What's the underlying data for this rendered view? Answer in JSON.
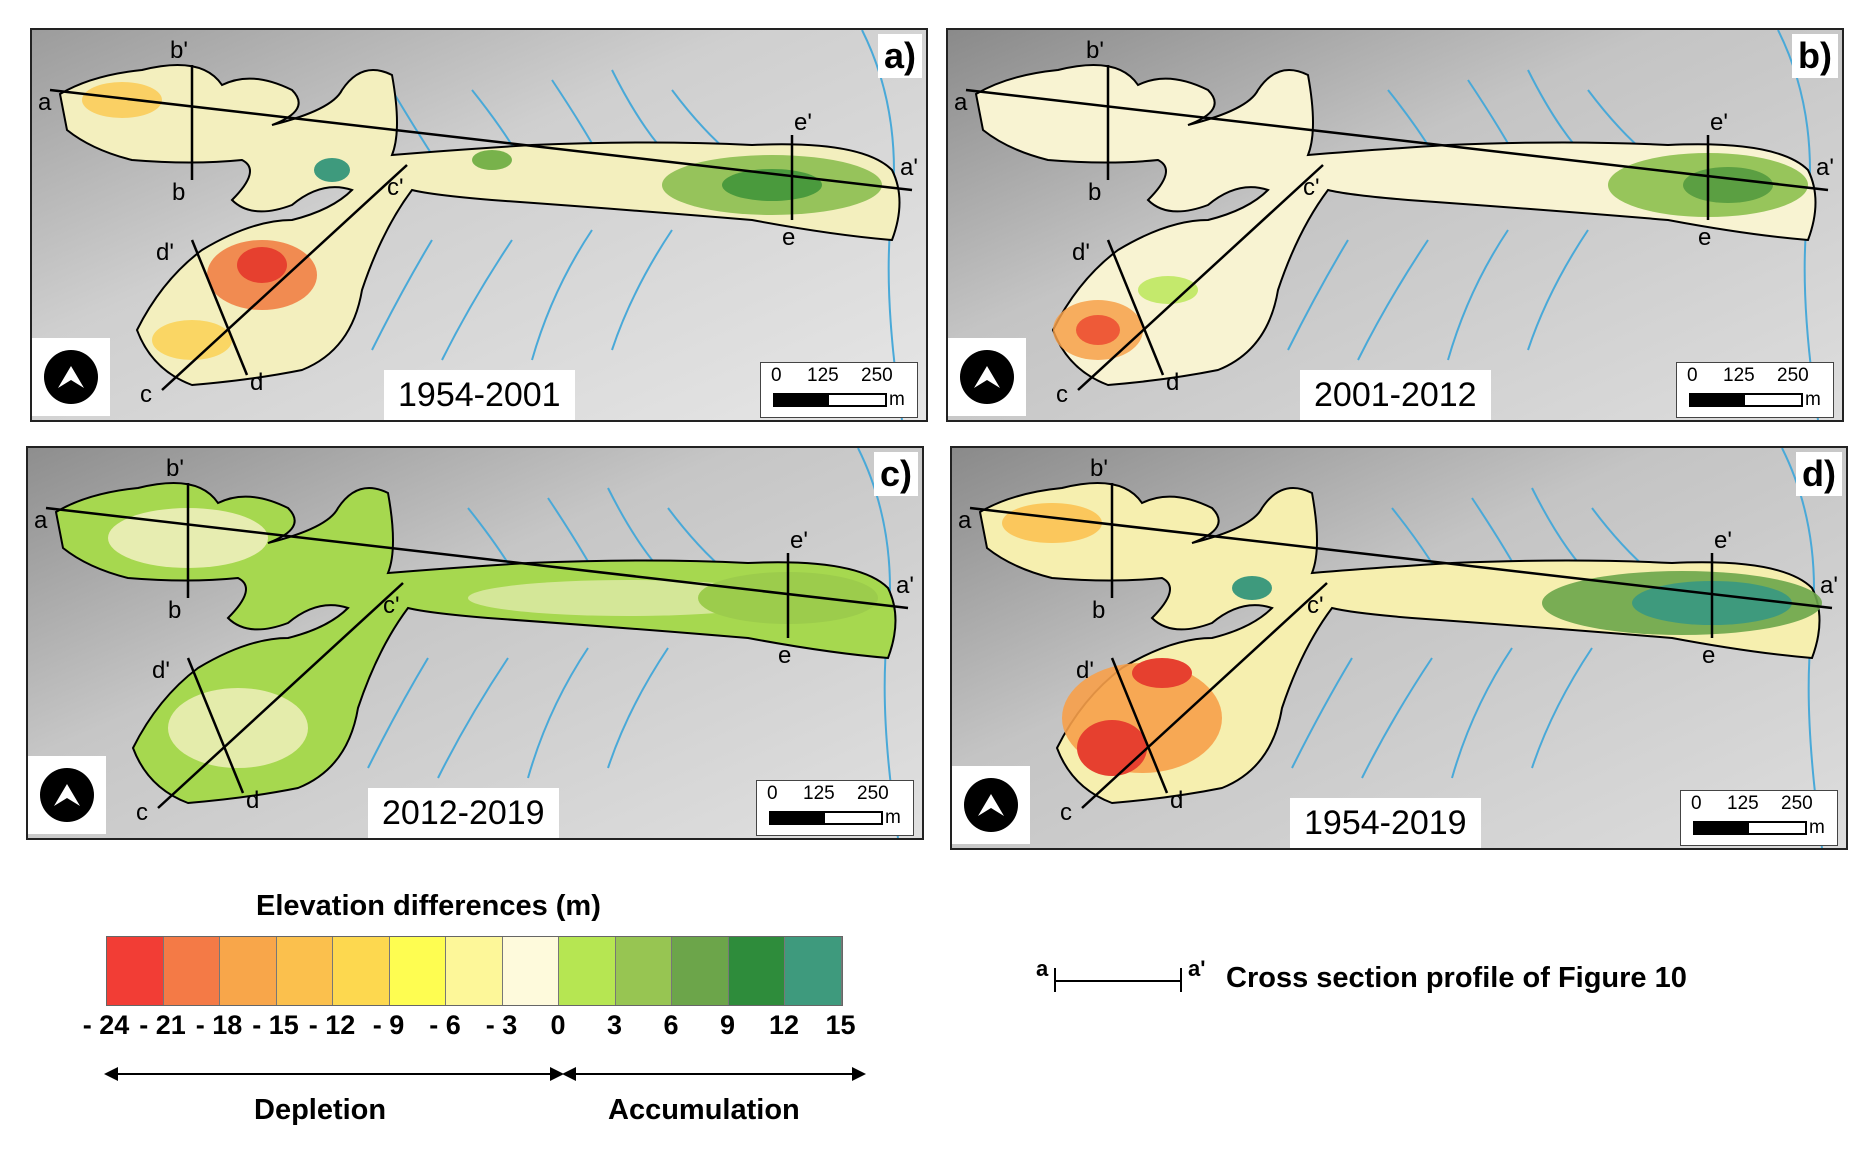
{
  "panels": [
    {
      "letter": "a)",
      "period": "1954-2001"
    },
    {
      "letter": "b)",
      "period": "2001-2012"
    },
    {
      "letter": "c)",
      "period": "2012-2019"
    },
    {
      "letter": "d)",
      "period": "1954-2019"
    }
  ],
  "profile_labels": [
    "a",
    "a'",
    "b",
    "b'",
    "c",
    "c'",
    "d",
    "d'",
    "e",
    "e'"
  ],
  "scale": {
    "ticks": [
      "0",
      "125",
      "250"
    ],
    "unit": "m"
  },
  "legend": {
    "title": "Elevation differences (m)",
    "ticks": [
      "- 24",
      "- 21",
      "- 18",
      "- 15",
      "- 12",
      "- 9",
      "- 6",
      "- 3",
      "0",
      "3",
      "6",
      "9",
      "12",
      "15"
    ],
    "colors": [
      "#f23d35",
      "#f47a46",
      "#f8a64a",
      "#fbc04d",
      "#fdd84f",
      "#fefd51",
      "#fdf799",
      "#fefadc",
      "#b6e652",
      "#97c552",
      "#6ca54a",
      "#2e8c3b",
      "#3e9a7d"
    ],
    "depletion": "Depletion",
    "accumulation": "Accumulation"
  },
  "cross_section": {
    "start": "a",
    "end": "a'",
    "text": "Cross section profile of Figure 10"
  }
}
